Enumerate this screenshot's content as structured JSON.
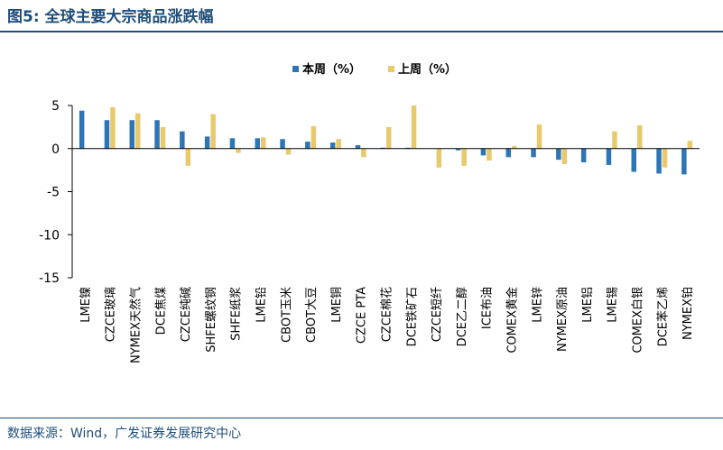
{
  "figure": {
    "title": "图5:  全球主要大宗商品涨跌幅",
    "source": "数据来源：Wind，广发证券发展研究中心"
  },
  "colors": {
    "this_week": "#2e75b6",
    "last_week": "#e8c96b",
    "axis": "#000000",
    "rule": "#1f4e79"
  },
  "chart_data": {
    "type": "bar",
    "title": "",
    "xlabel": "",
    "ylabel": "",
    "ylim": [
      -15,
      5
    ],
    "yticks": [
      5,
      0,
      -5,
      -10,
      -15
    ],
    "grid": false,
    "legend": "top-center",
    "categories": [
      "LME镍",
      "CZCE玻璃",
      "NYMEX天然气",
      "DCE焦煤",
      "CZCE纯碱",
      "SHFE螺纹钢",
      "SHFE纸浆",
      "LME铅",
      "CBOT玉米",
      "CBOT大豆",
      "LME铜",
      "CZCE PTA",
      "CZCE棉花",
      "DCE铁矿石",
      "CZCE短纤",
      "DCE乙二醇",
      "ICE布油",
      "COMEX黄金",
      "LME锌",
      "NYMEX原油",
      "LME铝",
      "LME锡",
      "COMEX白银",
      "DCE苯乙烯",
      "NYMEX铂"
    ],
    "series": [
      {
        "name": "本周（%）",
        "values": [
          4.4,
          3.3,
          3.3,
          3.3,
          2.0,
          1.4,
          1.2,
          1.2,
          1.1,
          0.8,
          0.7,
          0.4,
          0.1,
          0.1,
          0.0,
          -0.2,
          -0.8,
          -1.0,
          -1.0,
          -1.3,
          -1.6,
          -1.9,
          -2.7,
          -2.9,
          -3.0
        ]
      },
      {
        "name": "上周（%）",
        "values": [
          0.0,
          4.8,
          4.1,
          2.5,
          -2.0,
          4.0,
          -0.5,
          1.3,
          -0.7,
          2.6,
          1.1,
          -1.0,
          2.5,
          5.0,
          -2.2,
          -2.0,
          -1.4,
          0.3,
          2.8,
          -1.8,
          0.0,
          2.0,
          2.7,
          -2.2,
          0.9
        ]
      }
    ]
  }
}
